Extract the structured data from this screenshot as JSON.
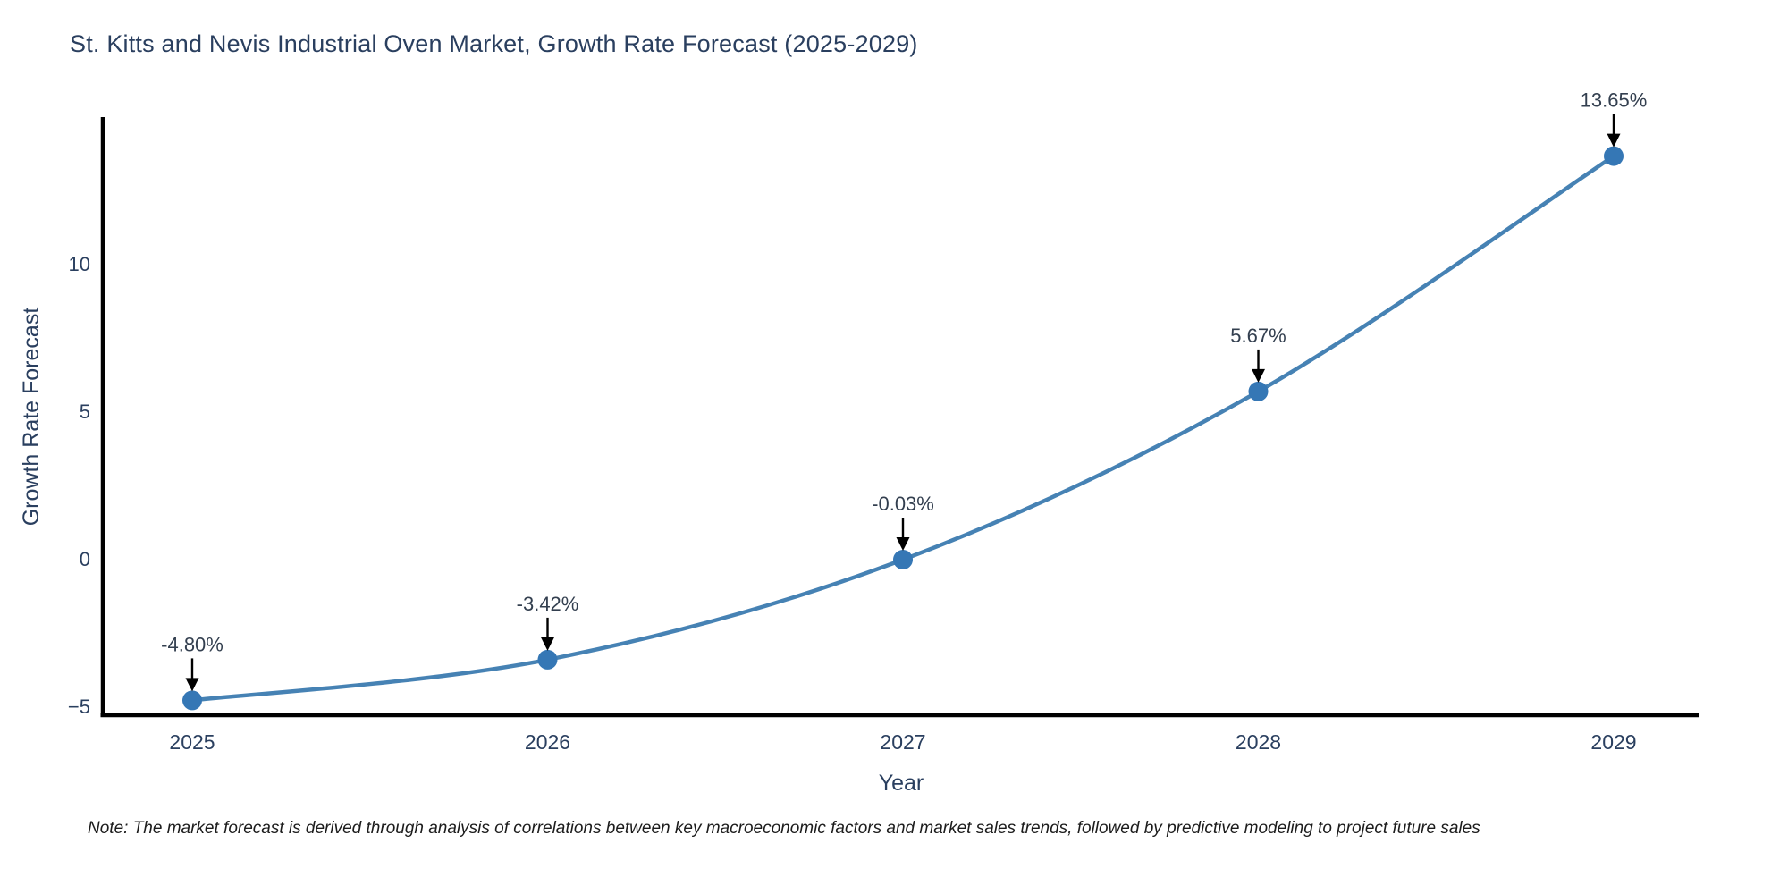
{
  "title": "St. Kitts and Nevis Industrial Oven Market, Growth Rate Forecast (2025-2029)",
  "note": "Note: The market forecast is derived through analysis of correlations between key macroeconomic factors and market sales trends, followed by predictive modeling to project future sales",
  "chart_data": {
    "type": "line",
    "title": "St. Kitts and Nevis Industrial Oven Market, Growth Rate Forecast (2025-2029)",
    "xlabel": "Year",
    "ylabel": "Growth Rate Forecast",
    "x": [
      2025,
      2026,
      2027,
      2028,
      2029
    ],
    "xticklabels": [
      "2025",
      "2026",
      "2027",
      "2028",
      "2029"
    ],
    "series": [
      {
        "name": "Growth Rate Forecast",
        "values": [
          -4.8,
          -3.42,
          -0.03,
          5.67,
          13.65
        ]
      }
    ],
    "point_labels": [
      "-4.80%",
      "-3.42%",
      "-0.03%",
      "5.67%",
      "13.65%"
    ],
    "yticks": [
      -5,
      0,
      5,
      10
    ],
    "ylim": [
      -5.3,
      14.9
    ],
    "grid": false,
    "legend": false,
    "line_color": "#4682b4",
    "marker_color": "#3577b5",
    "axis_color": "#000000",
    "tick_color": "#2a3f5f",
    "annotation_text_color": "#333f4f",
    "annotation_arrow_color": "#000000"
  }
}
